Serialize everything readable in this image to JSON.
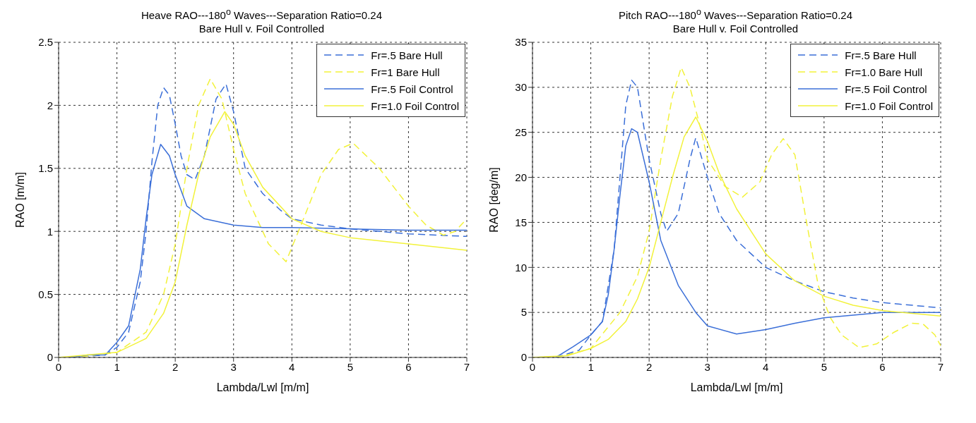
{
  "chart_data": [
    {
      "type": "line",
      "title": "Heave RAO---180$^{o}$ Waves---Separation Ratio=0.24",
      "subtitle": "Bare Hull v. Foil Controlled",
      "xlabel": "Lambda/Lwl [m/m]",
      "ylabel": "RAO [m/m]",
      "xlim": [
        0,
        7
      ],
      "ylim": [
        0,
        2.5
      ],
      "xticks": [
        0,
        1,
        2,
        3,
        4,
        5,
        6,
        7
      ],
      "yticks": [
        0,
        0.5,
        1,
        1.5,
        2,
        2.5
      ],
      "grid": true,
      "legend": "top right",
      "marker": "none",
      "series": [
        {
          "name": "Fr=.5 Bare Hull",
          "color": "#3b6fd8",
          "line_style": "dashed",
          "x": [
            0.2,
            0.5,
            0.8,
            1.0,
            1.2,
            1.4,
            1.5,
            1.6,
            1.7,
            1.8,
            1.9,
            2.0,
            2.1,
            2.2,
            2.34,
            2.5,
            2.7,
            2.87,
            3.0,
            3.2,
            3.5,
            3.8,
            4.0,
            4.5,
            5,
            6,
            7
          ],
          "values": [
            0,
            0.01,
            0.02,
            0.08,
            0.2,
            0.6,
            1.0,
            1.55,
            2.0,
            2.14,
            2.08,
            1.85,
            1.6,
            1.45,
            1.41,
            1.6,
            2.05,
            2.17,
            1.95,
            1.5,
            1.3,
            1.17,
            1.1,
            1.05,
            1.02,
            0.98,
            0.96
          ]
        },
        {
          "name": "Fr=1 Bare Hull",
          "color": "#f2f23a",
          "line_style": "dashed",
          "x": [
            0,
            0.5,
            1,
            1.5,
            1.8,
            2.0,
            2.2,
            2.4,
            2.6,
            2.8,
            3.0,
            3.2,
            3.4,
            3.6,
            3.9,
            4.2,
            4.5,
            4.8,
            5.05,
            5.5,
            6.0,
            6.3,
            6.6,
            6.8,
            7
          ],
          "values": [
            0,
            0.01,
            0.04,
            0.2,
            0.5,
            0.9,
            1.5,
            2.0,
            2.21,
            2.05,
            1.65,
            1.3,
            1.1,
            0.9,
            0.76,
            1.1,
            1.45,
            1.65,
            1.7,
            1.5,
            1.2,
            1.05,
            0.97,
            1.0,
            1.1
          ]
        },
        {
          "name": "Fr=.5 Foil Control",
          "color": "#3b6fd8",
          "line_style": "solid",
          "x": [
            0.2,
            0.5,
            0.8,
            1.0,
            1.2,
            1.4,
            1.5,
            1.6,
            1.75,
            1.9,
            2.0,
            2.2,
            2.5,
            3.0,
            3.5,
            4,
            5,
            6,
            7
          ],
          "values": [
            0,
            0.02,
            0.02,
            0.12,
            0.25,
            0.7,
            1.1,
            1.45,
            1.69,
            1.6,
            1.45,
            1.2,
            1.1,
            1.05,
            1.03,
            1.03,
            1.02,
            1.01,
            1.01
          ]
        },
        {
          "name": "Fr=1.0 Foil Control",
          "color": "#f2f23a",
          "line_style": "solid",
          "x": [
            0,
            1,
            1.5,
            1.8,
            2.0,
            2.2,
            2.4,
            2.6,
            2.85,
            3.0,
            3.2,
            3.5,
            4,
            4.5,
            5,
            6,
            7
          ],
          "values": [
            0,
            0.04,
            0.15,
            0.35,
            0.6,
            1.05,
            1.45,
            1.75,
            1.95,
            1.85,
            1.6,
            1.35,
            1.1,
            1.0,
            0.95,
            0.9,
            0.85
          ]
        }
      ]
    },
    {
      "type": "line",
      "title": "Pitch RAO---180$^{o}$ Waves---Separation Ratio=0.24",
      "subtitle": "Bare Hull v. Foil Controlled",
      "xlabel": "Lambda/Lwl [m/m]",
      "ylabel": "RAO [deg/m]",
      "xlim": [
        0,
        7
      ],
      "ylim": [
        0,
        35
      ],
      "xticks": [
        0,
        1,
        2,
        3,
        4,
        5,
        6,
        7
      ],
      "yticks": [
        0,
        5,
        10,
        15,
        20,
        25,
        30,
        35
      ],
      "grid": true,
      "legend": "top right",
      "marker": "none",
      "series": [
        {
          "name": "Fr=.5 Bare Hull",
          "color": "#3b6fd8",
          "line_style": "dashed",
          "x": [
            0.4,
            0.8,
            1.0,
            1.2,
            1.4,
            1.5,
            1.6,
            1.7,
            1.8,
            2.0,
            2.2,
            2.3,
            2.5,
            2.7,
            2.8,
            3.0,
            3.2,
            3.5,
            4,
            4.5,
            5,
            5.5,
            6,
            7
          ],
          "values": [
            0,
            0.8,
            2.5,
            4,
            12,
            20,
            28,
            30.8,
            30,
            22,
            16,
            14,
            16,
            22,
            24.4,
            20,
            16,
            13,
            10,
            8.5,
            7.3,
            6.6,
            6.1,
            5.5
          ]
        },
        {
          "name": "Fr=1.0 Bare Hull",
          "color": "#f2f23a",
          "line_style": "dashed",
          "x": [
            0,
            0.5,
            1,
            1.5,
            1.8,
            2.0,
            2.2,
            2.4,
            2.55,
            2.7,
            2.9,
            3.0,
            3.3,
            3.6,
            3.9,
            4.1,
            4.3,
            4.5,
            4.7,
            4.9,
            5.1,
            5.3,
            5.6,
            5.9,
            6.2,
            6.5,
            6.7,
            6.9,
            7
          ],
          "values": [
            0,
            0.1,
            1,
            5,
            9,
            14,
            22,
            29,
            32.2,
            30,
            25,
            22,
            19,
            17.8,
            19.5,
            22.5,
            24.3,
            22.5,
            15,
            8,
            4.5,
            2.5,
            1.1,
            1.5,
            2.8,
            3.8,
            3.7,
            2.5,
            1.3
          ]
        },
        {
          "name": "Fr=.5 Foil Control",
          "color": "#3b6fd8",
          "line_style": "solid",
          "x": [
            0.4,
            0.7,
            1.0,
            1.2,
            1.3,
            1.4,
            1.5,
            1.6,
            1.7,
            1.8,
            2.0,
            2.2,
            2.5,
            2.8,
            3.0,
            3.5,
            4,
            4.5,
            5,
            5.5,
            6,
            7
          ],
          "values": [
            0,
            1.2,
            2.5,
            4,
            7,
            12,
            18,
            23.5,
            25.4,
            25,
            19.5,
            13,
            8,
            5,
            3.5,
            2.6,
            3.1,
            3.8,
            4.4,
            4.7,
            5,
            5
          ]
        },
        {
          "name": "Fr=1.0 Foil Control",
          "color": "#f2f23a",
          "line_style": "solid",
          "x": [
            0,
            0.6,
            1,
            1.3,
            1.6,
            1.8,
            2.0,
            2.2,
            2.4,
            2.6,
            2.8,
            3.0,
            3.2,
            3.5,
            4,
            4.5,
            5,
            5.5,
            6,
            7
          ],
          "values": [
            0,
            0.2,
            1,
            2,
            4,
            6.5,
            10,
            15,
            20,
            24.5,
            26.7,
            24,
            20.5,
            16.5,
            11.5,
            8.5,
            6.8,
            5.8,
            5.2,
            4.6
          ]
        }
      ]
    }
  ]
}
